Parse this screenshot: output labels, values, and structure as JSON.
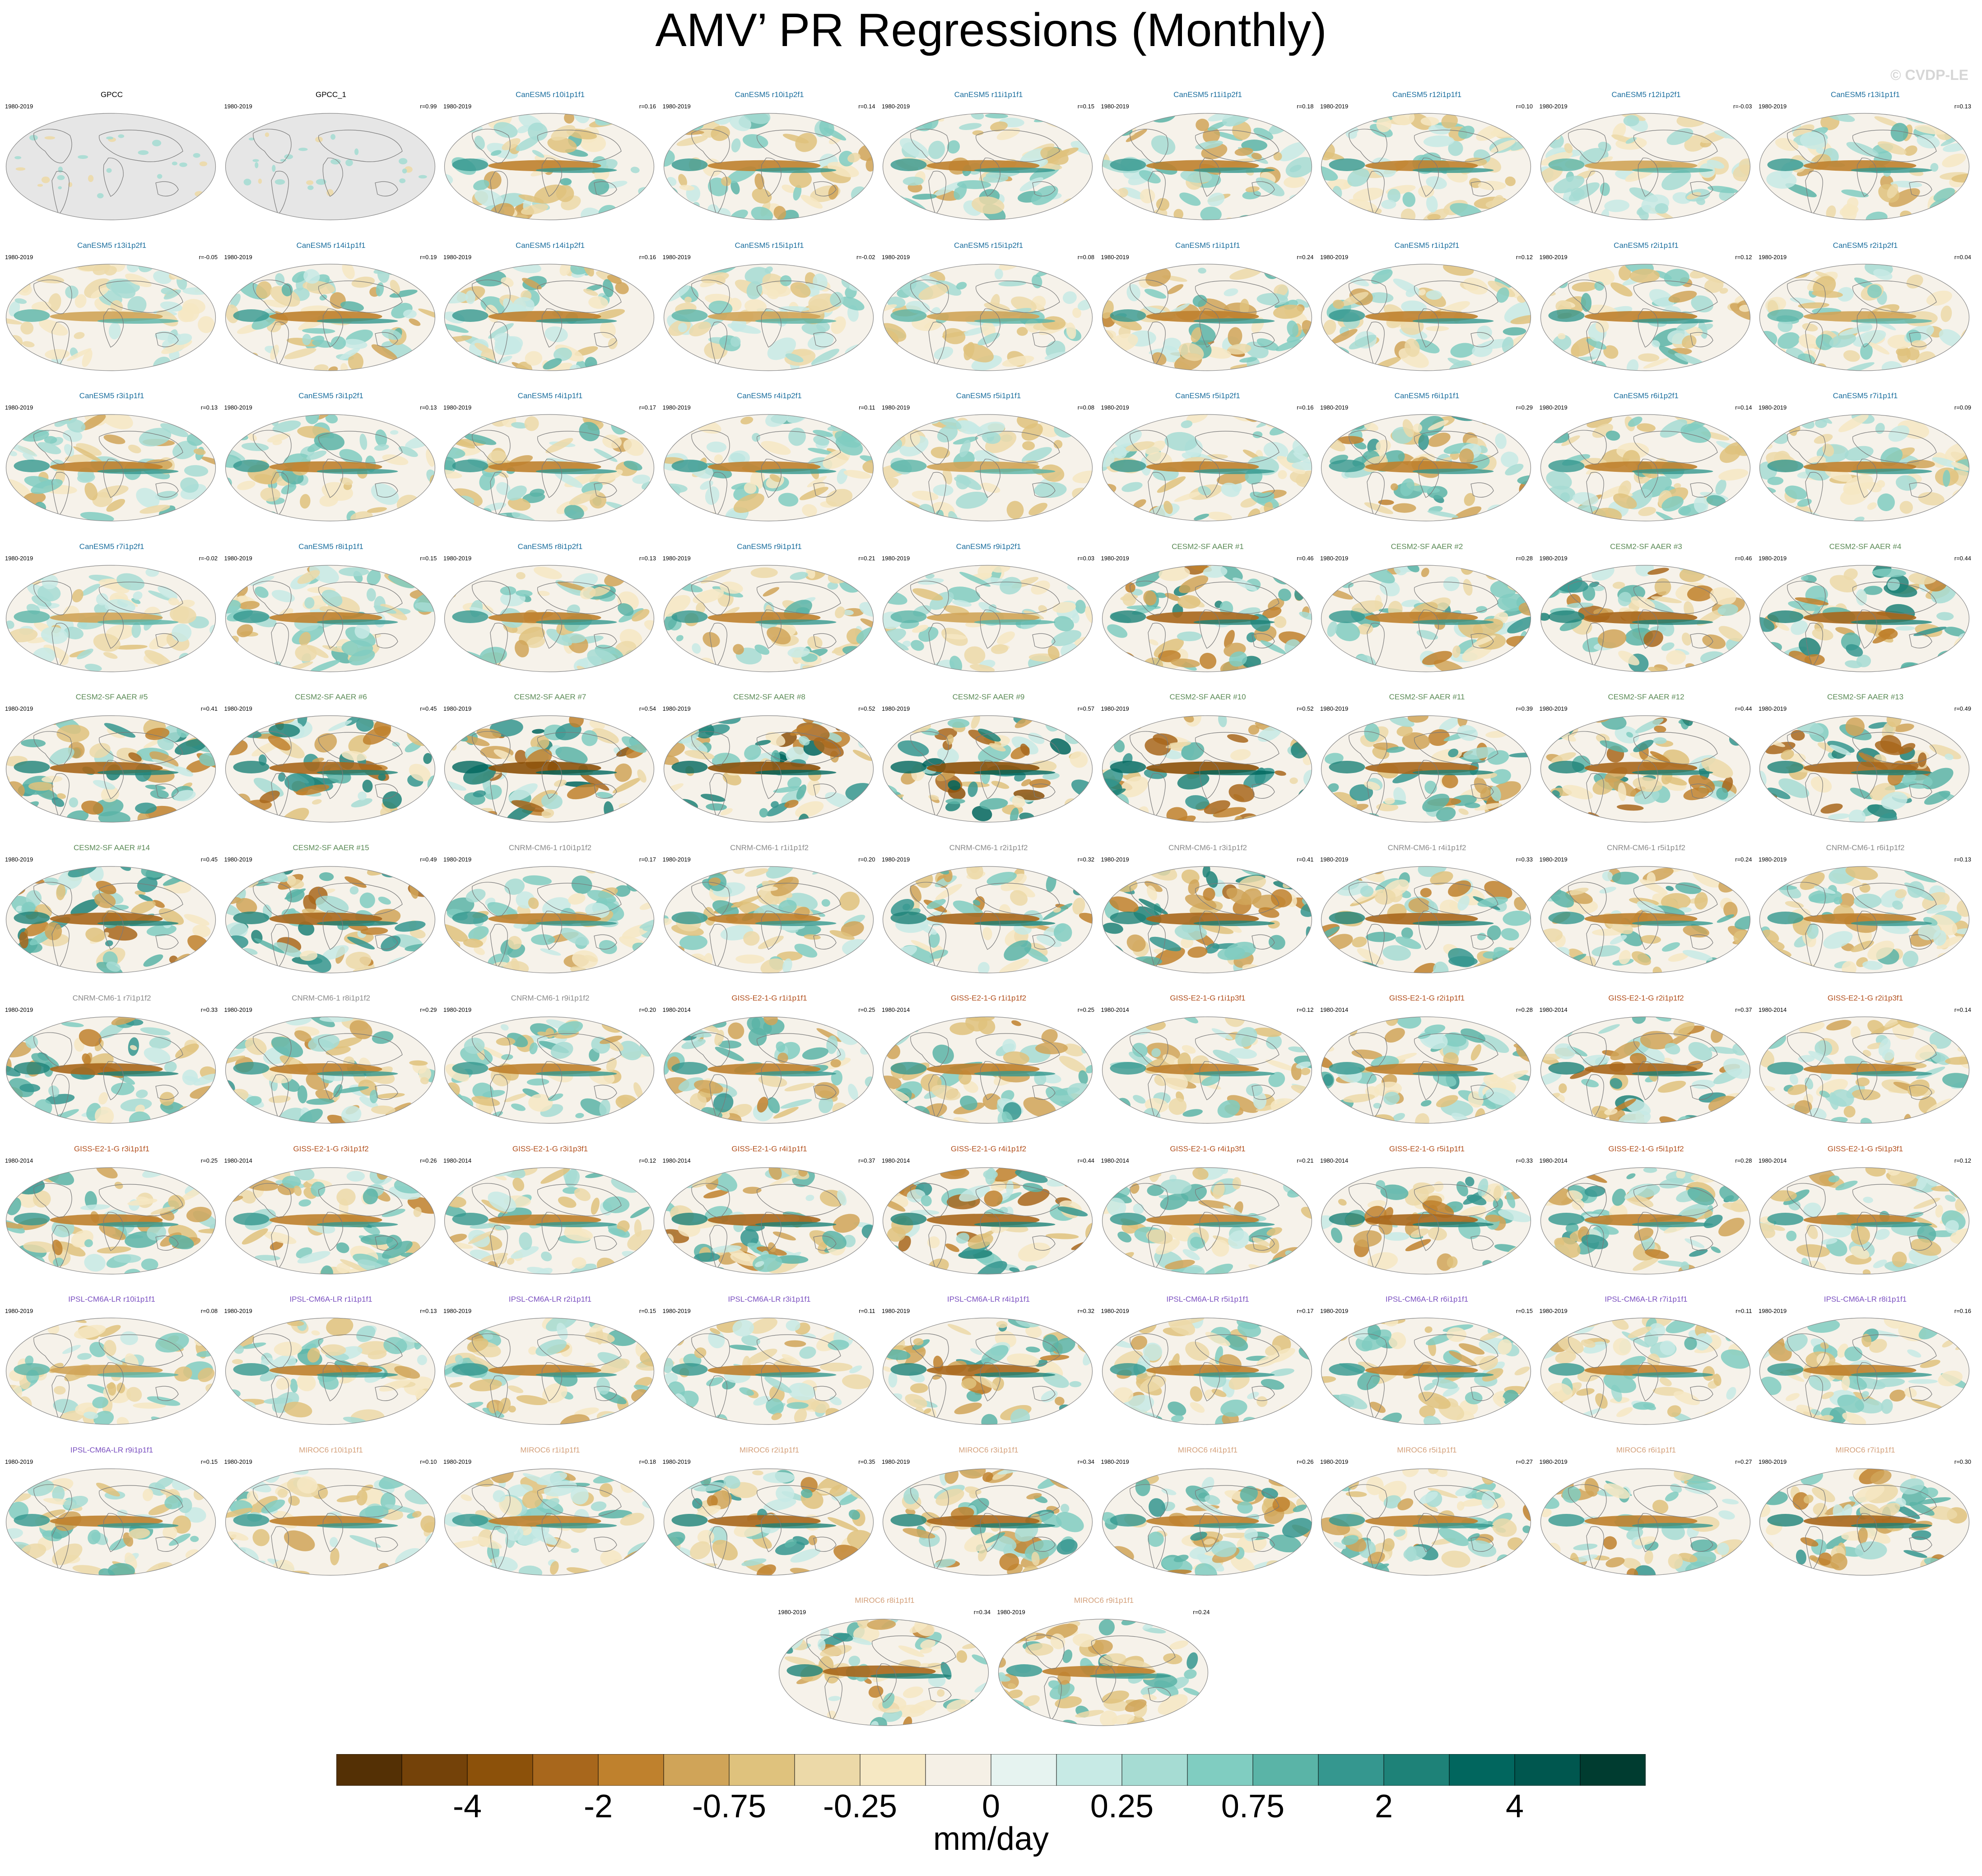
{
  "title": "AMV’ PR Regressions (Monthly)",
  "watermark": "© CVDP-LE",
  "chart_data": {
    "type": "heatmap",
    "variable": "precipitation regression on AMV'",
    "units": "mm/day",
    "colorbar": {
      "tick_labels": [
        "-4",
        "-2",
        "-0.75",
        "-0.25",
        "0",
        "0.25",
        "0.75",
        "2",
        "4"
      ],
      "colors": [
        "#543005",
        "#744209",
        "#8c510a",
        "#a8671c",
        "#bf812d",
        "#d0a458",
        "#dfc27d",
        "#ecd9a8",
        "#f6e8c3",
        "#f5f0e6",
        "#e6f3f0",
        "#c7eae5",
        "#a6dcd3",
        "#80cdc1",
        "#5ab4a7",
        "#35978f",
        "#1e8278",
        "#01665e",
        "#00574f",
        "#003c30"
      ]
    },
    "panels": [
      {
        "name": "GPCC",
        "period": "1980-2019",
        "r": "",
        "group": "obs"
      },
      {
        "name": "GPCC_1",
        "period": "1980-2019",
        "r": "r=0.99",
        "group": "obs"
      },
      {
        "name": "CanESM5 r10i1p1f1",
        "period": "1980-2019",
        "r": "r=0.16",
        "group": "canesm"
      },
      {
        "name": "CanESM5 r10i1p2f1",
        "period": "1980-2019",
        "r": "r=0.14",
        "group": "canesm"
      },
      {
        "name": "CanESM5 r11i1p1f1",
        "period": "1980-2019",
        "r": "r=0.15",
        "group": "canesm"
      },
      {
        "name": "CanESM5 r11i1p2f1",
        "period": "1980-2019",
        "r": "r=0.18",
        "group": "canesm"
      },
      {
        "name": "CanESM5 r12i1p1f1",
        "period": "1980-2019",
        "r": "r=0.10",
        "group": "canesm"
      },
      {
        "name": "CanESM5 r12i1p2f1",
        "period": "1980-2019",
        "r": "r=-0.03",
        "group": "canesm"
      },
      {
        "name": "CanESM5 r13i1p1f1",
        "period": "1980-2019",
        "r": "r=0.13",
        "group": "canesm"
      },
      {
        "name": "CanESM5 r13i1p2f1",
        "period": "1980-2019",
        "r": "r=-0.05",
        "group": "canesm"
      },
      {
        "name": "CanESM5 r14i1p1f1",
        "period": "1980-2019",
        "r": "r=0.19",
        "group": "canesm"
      },
      {
        "name": "CanESM5 r14i1p2f1",
        "period": "1980-2019",
        "r": "r=0.16",
        "group": "canesm"
      },
      {
        "name": "CanESM5 r15i1p1f1",
        "period": "1980-2019",
        "r": "r=-0.02",
        "group": "canesm"
      },
      {
        "name": "CanESM5 r15i1p2f1",
        "period": "1980-2019",
        "r": "r=0.08",
        "group": "canesm"
      },
      {
        "name": "CanESM5 r1i1p1f1",
        "period": "1980-2019",
        "r": "r=0.24",
        "group": "canesm"
      },
      {
        "name": "CanESM5 r1i1p2f1",
        "period": "1980-2019",
        "r": "r=0.12",
        "group": "canesm"
      },
      {
        "name": "CanESM5 r2i1p1f1",
        "period": "1980-2019",
        "r": "r=0.12",
        "group": "canesm"
      },
      {
        "name": "CanESM5 r2i1p2f1",
        "period": "1980-2019",
        "r": "r=0.04",
        "group": "canesm"
      },
      {
        "name": "CanESM5 r3i1p1f1",
        "period": "1980-2019",
        "r": "r=0.13",
        "group": "canesm"
      },
      {
        "name": "CanESM5 r3i1p2f1",
        "period": "1980-2019",
        "r": "r=0.13",
        "group": "canesm"
      },
      {
        "name": "CanESM5 r4i1p1f1",
        "period": "1980-2019",
        "r": "r=0.17",
        "group": "canesm"
      },
      {
        "name": "CanESM5 r4i1p2f1",
        "period": "1980-2019",
        "r": "r=0.11",
        "group": "canesm"
      },
      {
        "name": "CanESM5 r5i1p1f1",
        "period": "1980-2019",
        "r": "r=0.08",
        "group": "canesm"
      },
      {
        "name": "CanESM5 r5i1p2f1",
        "period": "1980-2019",
        "r": "r=0.16",
        "group": "canesm"
      },
      {
        "name": "CanESM5 r6i1p1f1",
        "period": "1980-2019",
        "r": "r=0.29",
        "group": "canesm"
      },
      {
        "name": "CanESM5 r6i1p2f1",
        "period": "1980-2019",
        "r": "r=0.14",
        "group": "canesm"
      },
      {
        "name": "CanESM5 r7i1p1f1",
        "period": "1980-2019",
        "r": "r=0.09",
        "group": "canesm"
      },
      {
        "name": "CanESM5 r7i1p2f1",
        "period": "1980-2019",
        "r": "r=-0.02",
        "group": "canesm"
      },
      {
        "name": "CanESM5 r8i1p1f1",
        "period": "1980-2019",
        "r": "r=0.15",
        "group": "canesm"
      },
      {
        "name": "CanESM5 r8i1p2f1",
        "period": "1980-2019",
        "r": "r=0.13",
        "group": "canesm"
      },
      {
        "name": "CanESM5 r9i1p1f1",
        "period": "1980-2019",
        "r": "r=0.21",
        "group": "canesm"
      },
      {
        "name": "CanESM5 r9i1p2f1",
        "period": "1980-2019",
        "r": "r=0.03",
        "group": "canesm"
      },
      {
        "name": "CESM2-SF AAER #1",
        "period": "1980-2019",
        "r": "r=0.46",
        "group": "cesm"
      },
      {
        "name": "CESM2-SF AAER #2",
        "period": "1980-2019",
        "r": "r=0.28",
        "group": "cesm"
      },
      {
        "name": "CESM2-SF AAER #3",
        "period": "1980-2019",
        "r": "r=0.46",
        "group": "cesm"
      },
      {
        "name": "CESM2-SF AAER #4",
        "period": "1980-2019",
        "r": "r=0.44",
        "group": "cesm"
      },
      {
        "name": "CESM2-SF AAER #5",
        "period": "1980-2019",
        "r": "r=0.41",
        "group": "cesm"
      },
      {
        "name": "CESM2-SF AAER #6",
        "period": "1980-2019",
        "r": "r=0.45",
        "group": "cesm"
      },
      {
        "name": "CESM2-SF AAER #7",
        "period": "1980-2019",
        "r": "r=0.54",
        "group": "cesm"
      },
      {
        "name": "CESM2-SF AAER #8",
        "period": "1980-2019",
        "r": "r=0.52",
        "group": "cesm"
      },
      {
        "name": "CESM2-SF AAER #9",
        "period": "1980-2019",
        "r": "r=0.57",
        "group": "cesm"
      },
      {
        "name": "CESM2-SF AAER #10",
        "period": "1980-2019",
        "r": "r=0.52",
        "group": "cesm"
      },
      {
        "name": "CESM2-SF AAER #11",
        "period": "1980-2019",
        "r": "r=0.39",
        "group": "cesm"
      },
      {
        "name": "CESM2-SF AAER #12",
        "period": "1980-2019",
        "r": "r=0.44",
        "group": "cesm"
      },
      {
        "name": "CESM2-SF AAER #13",
        "period": "1980-2019",
        "r": "r=0.49",
        "group": "cesm"
      },
      {
        "name": "CESM2-SF AAER #14",
        "period": "1980-2019",
        "r": "r=0.45",
        "group": "cesm"
      },
      {
        "name": "CESM2-SF AAER #15",
        "period": "1980-2019",
        "r": "r=0.49",
        "group": "cesm"
      },
      {
        "name": "CNRM-CM6-1 r10i1p1f2",
        "period": "1980-2019",
        "r": "r=0.17",
        "group": "cnrm"
      },
      {
        "name": "CNRM-CM6-1 r1i1p1f2",
        "period": "1980-2019",
        "r": "r=0.20",
        "group": "cnrm"
      },
      {
        "name": "CNRM-CM6-1 r2i1p1f2",
        "period": "1980-2019",
        "r": "r=0.32",
        "group": "cnrm"
      },
      {
        "name": "CNRM-CM6-1 r3i1p1f2",
        "period": "1980-2019",
        "r": "r=0.41",
        "group": "cnrm"
      },
      {
        "name": "CNRM-CM6-1 r4i1p1f2",
        "period": "1980-2019",
        "r": "r=0.33",
        "group": "cnrm"
      },
      {
        "name": "CNRM-CM6-1 r5i1p1f2",
        "period": "1980-2019",
        "r": "r=0.24",
        "group": "cnrm"
      },
      {
        "name": "CNRM-CM6-1 r6i1p1f2",
        "period": "1980-2019",
        "r": "r=0.13",
        "group": "cnrm"
      },
      {
        "name": "CNRM-CM6-1 r7i1p1f2",
        "period": "1980-2019",
        "r": "r=0.33",
        "group": "cnrm"
      },
      {
        "name": "CNRM-CM6-1 r8i1p1f2",
        "period": "1980-2019",
        "r": "r=0.29",
        "group": "cnrm"
      },
      {
        "name": "CNRM-CM6-1 r9i1p1f2",
        "period": "1980-2019",
        "r": "r=0.20",
        "group": "cnrm"
      },
      {
        "name": "GISS-E2-1-G r1i1p1f1",
        "period": "1980-2014",
        "r": "r=0.25",
        "group": "giss"
      },
      {
        "name": "GISS-E2-1-G r1i1p1f2",
        "period": "1980-2014",
        "r": "r=0.25",
        "group": "giss"
      },
      {
        "name": "GISS-E2-1-G r1i1p3f1",
        "period": "1980-2014",
        "r": "r=0.12",
        "group": "giss"
      },
      {
        "name": "GISS-E2-1-G r2i1p1f1",
        "period": "1980-2014",
        "r": "r=0.28",
        "group": "giss"
      },
      {
        "name": "GISS-E2-1-G r2i1p1f2",
        "period": "1980-2014",
        "r": "r=0.37",
        "group": "giss"
      },
      {
        "name": "GISS-E2-1-G r2i1p3f1",
        "period": "1980-2014",
        "r": "r=0.14",
        "group": "giss"
      },
      {
        "name": "GISS-E2-1-G r3i1p1f1",
        "period": "1980-2014",
        "r": "r=0.25",
        "group": "giss"
      },
      {
        "name": "GISS-E2-1-G r3i1p1f2",
        "period": "1980-2014",
        "r": "r=0.26",
        "group": "giss"
      },
      {
        "name": "GISS-E2-1-G r3i1p3f1",
        "period": "1980-2014",
        "r": "r=0.12",
        "group": "giss"
      },
      {
        "name": "GISS-E2-1-G r4i1p1f1",
        "period": "1980-2014",
        "r": "r=0.37",
        "group": "giss"
      },
      {
        "name": "GISS-E2-1-G r4i1p1f2",
        "period": "1980-2014",
        "r": "r=0.44",
        "group": "giss"
      },
      {
        "name": "GISS-E2-1-G r4i1p3f1",
        "period": "1980-2014",
        "r": "r=0.21",
        "group": "giss"
      },
      {
        "name": "GISS-E2-1-G r5i1p1f1",
        "period": "1980-2014",
        "r": "r=0.33",
        "group": "giss"
      },
      {
        "name": "GISS-E2-1-G r5i1p1f2",
        "period": "1980-2014",
        "r": "r=0.28",
        "group": "giss"
      },
      {
        "name": "GISS-E2-1-G r5i1p3f1",
        "period": "1980-2014",
        "r": "r=0.12",
        "group": "giss"
      },
      {
        "name": "IPSL-CM6A-LR r10i1p1f1",
        "period": "1980-2019",
        "r": "r=0.08",
        "group": "ipsl"
      },
      {
        "name": "IPSL-CM6A-LR r1i1p1f1",
        "period": "1980-2019",
        "r": "r=0.13",
        "group": "ipsl"
      },
      {
        "name": "IPSL-CM6A-LR r2i1p1f1",
        "period": "1980-2019",
        "r": "r=0.15",
        "group": "ipsl"
      },
      {
        "name": "IPSL-CM6A-LR r3i1p1f1",
        "period": "1980-2019",
        "r": "r=0.11",
        "group": "ipsl"
      },
      {
        "name": "IPSL-CM6A-LR r4i1p1f1",
        "period": "1980-2019",
        "r": "r=0.32",
        "group": "ipsl"
      },
      {
        "name": "IPSL-CM6A-LR r5i1p1f1",
        "period": "1980-2019",
        "r": "r=0.17",
        "group": "ipsl"
      },
      {
        "name": "IPSL-CM6A-LR r6i1p1f1",
        "period": "1980-2019",
        "r": "r=0.15",
        "group": "ipsl"
      },
      {
        "name": "IPSL-CM6A-LR r7i1p1f1",
        "period": "1980-2019",
        "r": "r=0.11",
        "group": "ipsl"
      },
      {
        "name": "IPSL-CM6A-LR r8i1p1f1",
        "period": "1980-2019",
        "r": "r=0.16",
        "group": "ipsl"
      },
      {
        "name": "IPSL-CM6A-LR r9i1p1f1",
        "period": "1980-2019",
        "r": "r=0.15",
        "group": "ipsl"
      },
      {
        "name": "MIROC6 r10i1p1f1",
        "period": "1980-2019",
        "r": "r=0.10",
        "group": "miroc"
      },
      {
        "name": "MIROC6 r1i1p1f1",
        "period": "1980-2019",
        "r": "r=0.18",
        "group": "miroc"
      },
      {
        "name": "MIROC6 r2i1p1f1",
        "period": "1980-2019",
        "r": "r=0.35",
        "group": "miroc"
      },
      {
        "name": "MIROC6 r3i1p1f1",
        "period": "1980-2019",
        "r": "r=0.34",
        "group": "miroc"
      },
      {
        "name": "MIROC6 r4i1p1f1",
        "period": "1980-2019",
        "r": "r=0.26",
        "group": "miroc"
      },
      {
        "name": "MIROC6 r5i1p1f1",
        "period": "1980-2019",
        "r": "r=0.27",
        "group": "miroc"
      },
      {
        "name": "MIROC6 r6i1p1f1",
        "period": "1980-2019",
        "r": "r=0.27",
        "group": "miroc"
      },
      {
        "name": "MIROC6 r7i1p1f1",
        "period": "1980-2019",
        "r": "r=0.30",
        "group": "miroc"
      },
      {
        "name": "MIROC6 r8i1p1f1",
        "period": "1980-2019",
        "r": "r=0.34",
        "group": "miroc"
      },
      {
        "name": "MIROC6 r9i1p1f1",
        "period": "1980-2019",
        "r": "r=0.24",
        "group": "miroc"
      }
    ],
    "group_title_colors": {
      "obs": "#000000",
      "canesm": "#1b6e9e",
      "cesm": "#5a8a55",
      "cnrm": "#8a8a8a",
      "giss": "#b2501e",
      "ipsl": "#7a4fc0",
      "miroc": "#d4a07a"
    },
    "map_colors": {
      "land_obs": "#e6e6e6",
      "coast": "#7a7a7a",
      "frame": "#888888"
    }
  }
}
